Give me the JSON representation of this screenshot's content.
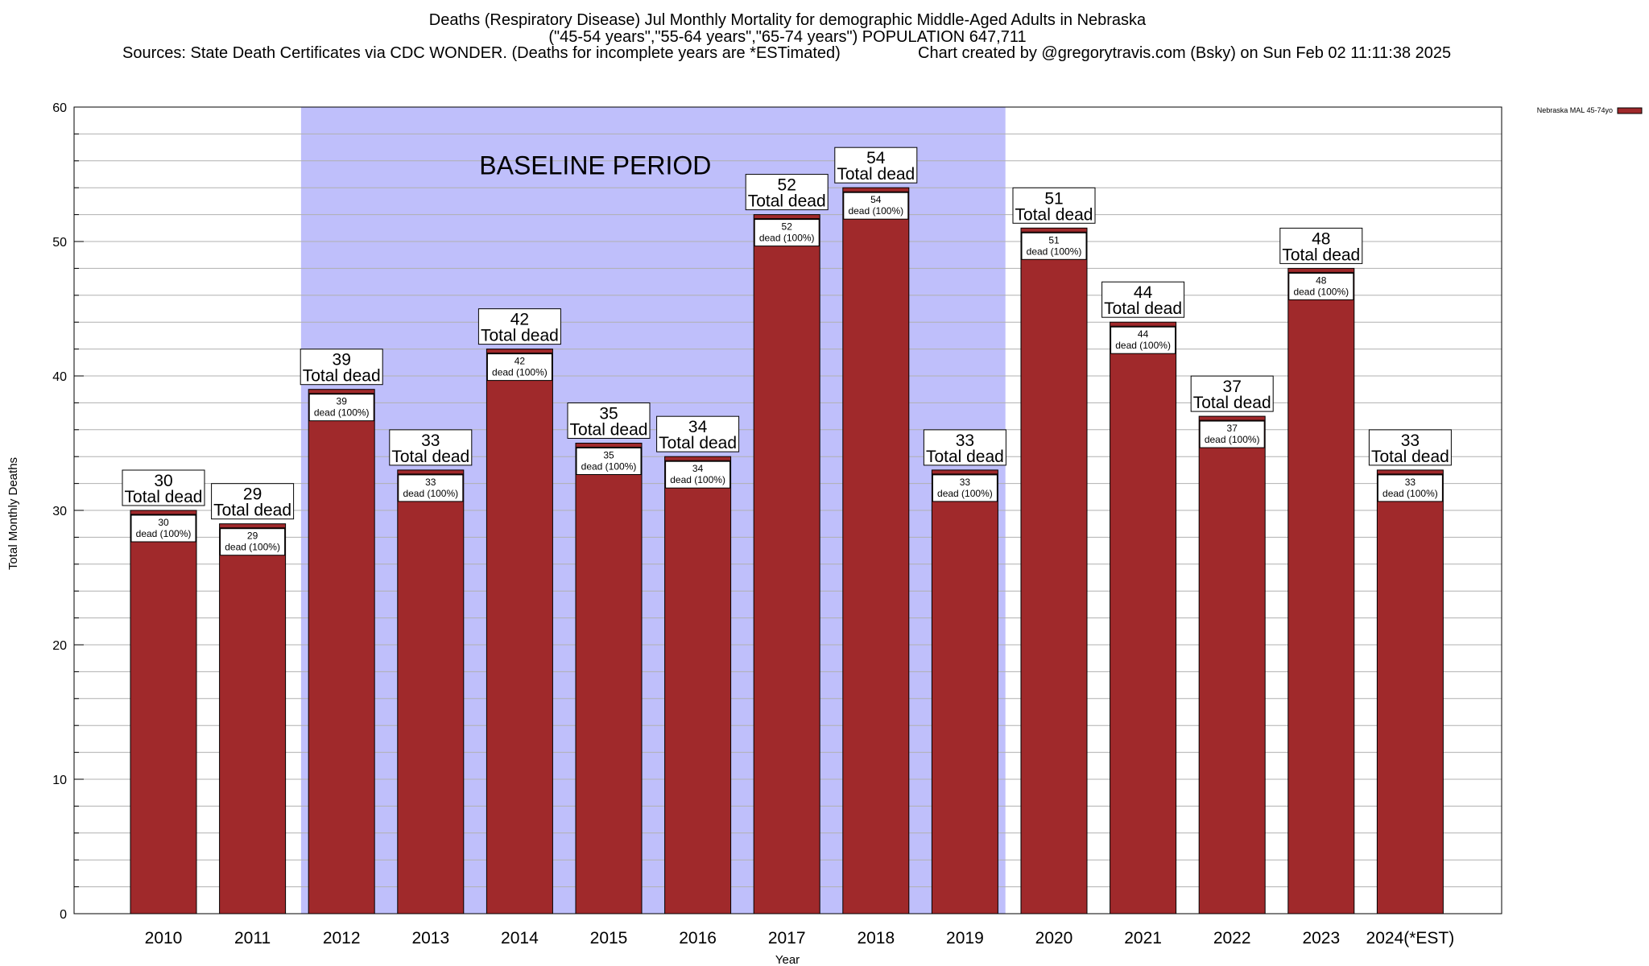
{
  "chart_data": {
    "type": "bar",
    "title": "Deaths (Respiratory Disease) Jul Monthly Mortality for demographic Middle-Aged Adults in Nebraska",
    "subtitle": "(\"45-54 years\",\"55-64 years\",\"65-74 years\") POPULATION 647,711",
    "source": "Sources: State Death Certificates via CDC WONDER. (Deaths for incomplete years are *ESTimated)",
    "credit": "Chart created by @gregorytravis.com (Bsky) on Sun Feb 02 11:11:38 2025",
    "xlabel": "Year",
    "ylabel": "Total Monthly Deaths",
    "ylim": [
      0,
      60
    ],
    "yticks": [
      0,
      10,
      20,
      30,
      40,
      50,
      60
    ],
    "grid": true,
    "categories": [
      "2010",
      "2011",
      "2012",
      "2013",
      "2014",
      "2015",
      "2016",
      "2017",
      "2018",
      "2019",
      "2020",
      "2021",
      "2022",
      "2023",
      "2024(*EST)"
    ],
    "series": [
      {
        "name": "Nebraska MAL 45-74yo",
        "values": [
          30,
          29,
          39,
          33,
          42,
          35,
          34,
          52,
          54,
          33,
          51,
          44,
          37,
          48,
          33
        ]
      }
    ],
    "bar_label_total": "Total dead",
    "bar_label_inner": "dead (100%)",
    "baseline": {
      "label": "BASELINE PERIOD",
      "start": "2012",
      "end": "2019"
    },
    "legend_position": "top-right",
    "colors": {
      "bar": "#a0292b",
      "bar_top": "#c0392b",
      "baseline_band": "#bfbffb",
      "grid": "#b0b0b0"
    }
  }
}
